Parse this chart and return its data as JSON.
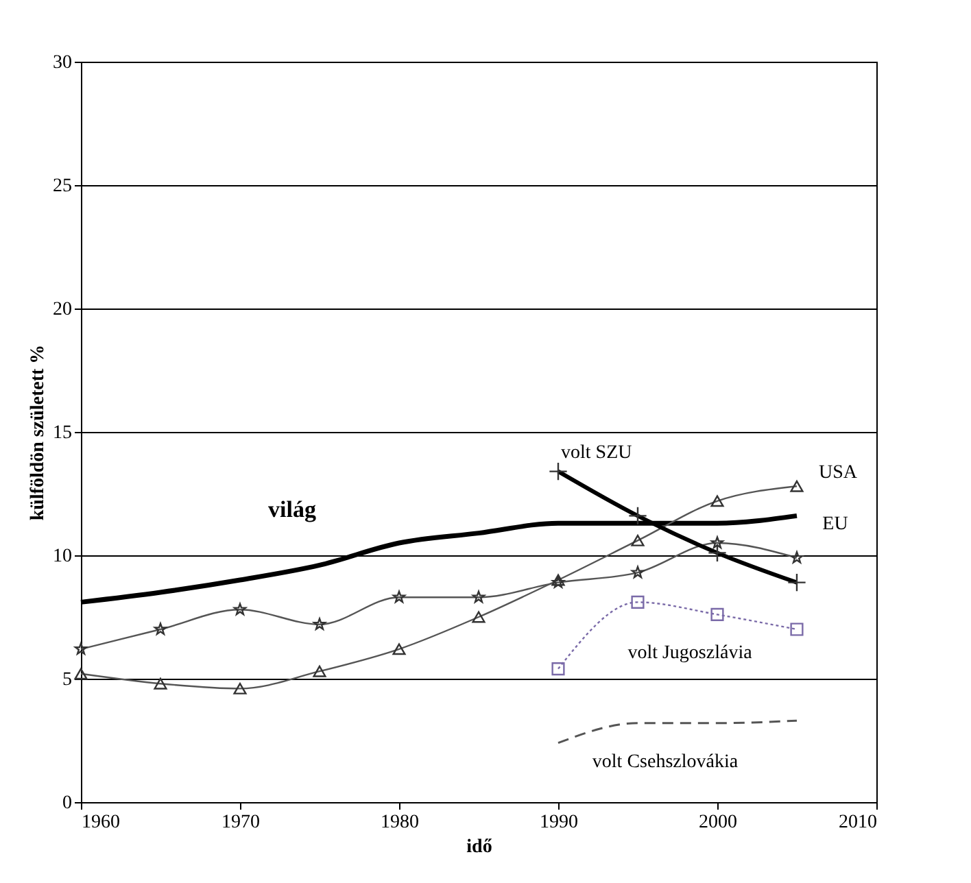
{
  "chart_data": {
    "type": "line",
    "xlabel": "idő",
    "ylabel": "külföldön született %",
    "xlim": [
      1960,
      2010
    ],
    "xticks": [
      1960,
      1970,
      1980,
      1990,
      2000,
      2010
    ],
    "ylim": [
      0,
      30
    ],
    "yticks": [
      0,
      5,
      10,
      15,
      20,
      25,
      30
    ],
    "grid": "y",
    "legend": false,
    "series": [
      {
        "name": "világ",
        "color": "#000000",
        "marker": "none",
        "line_style": "solid",
        "x": [
          1960,
          1965,
          1970,
          1975,
          1980,
          1985,
          1990,
          1995,
          2000,
          2005
        ],
        "values": [
          8.1,
          8.5,
          9.0,
          9.6,
          10.5,
          10.9,
          11.3,
          11.3,
          11.3,
          11.6
        ]
      },
      {
        "name": "EU",
        "color": "#555555",
        "marker": "star",
        "line_style": "solid",
        "x": [
          1960,
          1965,
          1970,
          1975,
          1980,
          1985,
          1990,
          1995,
          2000,
          2005
        ],
        "values": [
          6.2,
          7.0,
          7.8,
          7.2,
          8.3,
          8.3,
          8.9,
          9.3,
          10.5,
          9.9
        ]
      },
      {
        "name": "USA",
        "color": "#555555",
        "marker": "triangle",
        "line_style": "solid",
        "x": [
          1960,
          1965,
          1970,
          1975,
          1980,
          1985,
          1990,
          1995,
          2000,
          2005
        ],
        "values": [
          5.2,
          4.8,
          4.6,
          5.3,
          6.2,
          7.5,
          9.0,
          10.6,
          12.2,
          12.8
        ]
      },
      {
        "name": "volt SZU",
        "color": "#000000",
        "marker": "cross",
        "line_style": "solid",
        "x": [
          1990,
          1995,
          2000,
          2005
        ],
        "values": [
          13.4,
          11.6,
          10.1,
          8.9
        ]
      },
      {
        "name": "volt Jugoszlávia",
        "color": "#7a6aa8",
        "marker": "square",
        "line_style": "dotted",
        "x": [
          1990,
          1995,
          2000,
          2005
        ],
        "values": [
          5.4,
          8.1,
          7.6,
          7.0
        ]
      },
      {
        "name": "volt Csehszlovákia",
        "color": "#555555",
        "marker": "none",
        "line_style": "dashed",
        "x": [
          1990,
          1995,
          2000,
          2005
        ],
        "values": [
          2.4,
          3.2,
          3.2,
          3.3
        ]
      }
    ]
  }
}
